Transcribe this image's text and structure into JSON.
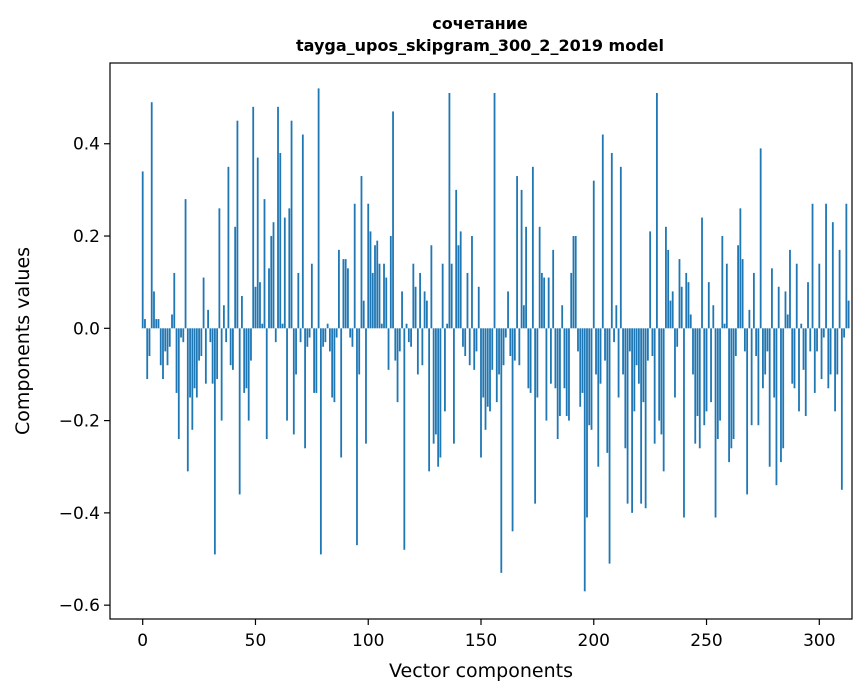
{
  "chart_data": {
    "type": "bar",
    "title": "сочетание",
    "subtitle": "tayga_upos_skipgram_300_2_2019 model",
    "xlabel": "Vector components",
    "ylabel": "Components values",
    "xlim": [
      -14.5,
      314.5
    ],
    "ylim": [
      -0.63,
      0.575
    ],
    "xticks": [
      0,
      50,
      100,
      150,
      200,
      250,
      300
    ],
    "xtick_labels": [
      "0",
      "50",
      "100",
      "150",
      "200",
      "250",
      "300"
    ],
    "yticks": [
      -0.6,
      -0.4,
      -0.2,
      0.0,
      0.2,
      0.4
    ],
    "ytick_labels": [
      "−0.6",
      "−0.4",
      "−0.2",
      "0.0",
      "0.2",
      "0.4"
    ],
    "color": "#1f77b4",
    "series": [
      {
        "name": "components",
        "values": [
          0.34,
          0.02,
          -0.11,
          -0.06,
          0.49,
          0.08,
          0.02,
          0.02,
          -0.08,
          -0.11,
          -0.05,
          -0.08,
          -0.04,
          0.03,
          0.12,
          -0.14,
          -0.24,
          -0.02,
          -0.03,
          0.28,
          -0.31,
          -0.15,
          -0.22,
          -0.13,
          -0.15,
          -0.07,
          -0.06,
          0.11,
          -0.12,
          0.04,
          -0.03,
          -0.12,
          -0.49,
          -0.11,
          0.26,
          -0.2,
          0.05,
          -0.03,
          0.35,
          -0.08,
          -0.09,
          0.22,
          0.45,
          -0.36,
          0.07,
          -0.14,
          -0.13,
          -0.2,
          -0.07,
          0.48,
          0.09,
          0.37,
          0.1,
          0.01,
          0.28,
          -0.24,
          0.13,
          0.2,
          0.23,
          -0.03,
          0.48,
          0.38,
          0.01,
          0.24,
          -0.2,
          0.26,
          0.45,
          -0.23,
          -0.1,
          0.12,
          -0.03,
          0.42,
          -0.26,
          -0.04,
          -0.02,
          0.14,
          -0.14,
          -0.14,
          0.52,
          -0.49,
          -0.04,
          -0.03,
          0.01,
          -0.05,
          -0.15,
          -0.16,
          -0.02,
          0.17,
          -0.28,
          0.15,
          0.15,
          0.13,
          -0.02,
          -0.04,
          0.27,
          -0.47,
          -0.1,
          0.33,
          0.06,
          -0.25,
          0.27,
          0.21,
          0.12,
          0.18,
          0.19,
          0.14,
          0.01,
          0.14,
          0.11,
          -0.09,
          0.2,
          0.47,
          -0.07,
          -0.16,
          -0.05,
          0.08,
          -0.48,
          0.01,
          -0.03,
          -0.04,
          0.14,
          0.09,
          -0.1,
          0.12,
          -0.08,
          0.08,
          0.06,
          -0.31,
          0.18,
          -0.25,
          -0.23,
          -0.3,
          -0.28,
          0.14,
          -0.18,
          0.01,
          0.51,
          0.14,
          -0.25,
          0.3,
          0.18,
          0.21,
          -0.04,
          -0.06,
          0.12,
          -0.08,
          0.2,
          -0.09,
          -0.05,
          0.09,
          -0.28,
          -0.15,
          -0.22,
          -0.17,
          -0.18,
          -0.09,
          0.51,
          -0.16,
          -0.1,
          -0.53,
          -0.08,
          -0.02,
          0.08,
          -0.06,
          -0.44,
          -0.07,
          0.33,
          -0.08,
          0.3,
          0.05,
          0.22,
          -0.13,
          -0.14,
          0.35,
          -0.38,
          -0.15,
          0.22,
          0.12,
          0.11,
          -0.2,
          0.11,
          -0.12,
          0.17,
          -0.13,
          -0.24,
          -0.19,
          0.05,
          -0.13,
          -0.19,
          -0.2,
          0.12,
          0.2,
          0.2,
          -0.05,
          -0.17,
          -0.14,
          -0.57,
          -0.41,
          -0.21,
          -0.22,
          0.32,
          -0.1,
          -0.3,
          -0.12,
          0.42,
          -0.07,
          -0.27,
          -0.51,
          0.38,
          -0.03,
          0.05,
          -0.15,
          0.35,
          -0.1,
          -0.26,
          -0.38,
          -0.05,
          -0.4,
          -0.18,
          -0.08,
          -0.12,
          -0.38,
          -0.16,
          -0.39,
          -0.07,
          0.21,
          -0.06,
          -0.25,
          0.51,
          -0.2,
          -0.23,
          -0.31,
          0.22,
          0.17,
          0.06,
          0.08,
          -0.15,
          -0.04,
          0.15,
          0.09,
          -0.41,
          0.12,
          0.1,
          0.03,
          -0.1,
          -0.25,
          -0.19,
          -0.26,
          0.24,
          -0.21,
          -0.18,
          0.1,
          -0.16,
          0.05,
          -0.41,
          -0.24,
          -0.2,
          0.2,
          0.01,
          0.14,
          -0.29,
          -0.26,
          -0.24,
          -0.06,
          0.18,
          0.26,
          0.15,
          -0.05,
          -0.36,
          0.04,
          -0.21,
          0.12,
          -0.06,
          -0.21,
          0.39,
          -0.13,
          -0.1,
          -0.05,
          -0.3,
          0.13,
          -0.15,
          -0.34,
          0.09,
          -0.29,
          -0.26,
          0.08,
          0.03,
          0.17,
          -0.12,
          -0.13,
          0.14,
          -0.18,
          0.01,
          -0.09,
          -0.19,
          0.1,
          -0.05,
          0.27,
          -0.14,
          -0.05,
          0.14,
          -0.11,
          -0.02,
          0.27,
          -0.13,
          -0.1,
          0.23,
          -0.18,
          -0.1,
          0.17,
          -0.35,
          -0.02,
          0.27,
          0.06
        ]
      }
    ]
  }
}
